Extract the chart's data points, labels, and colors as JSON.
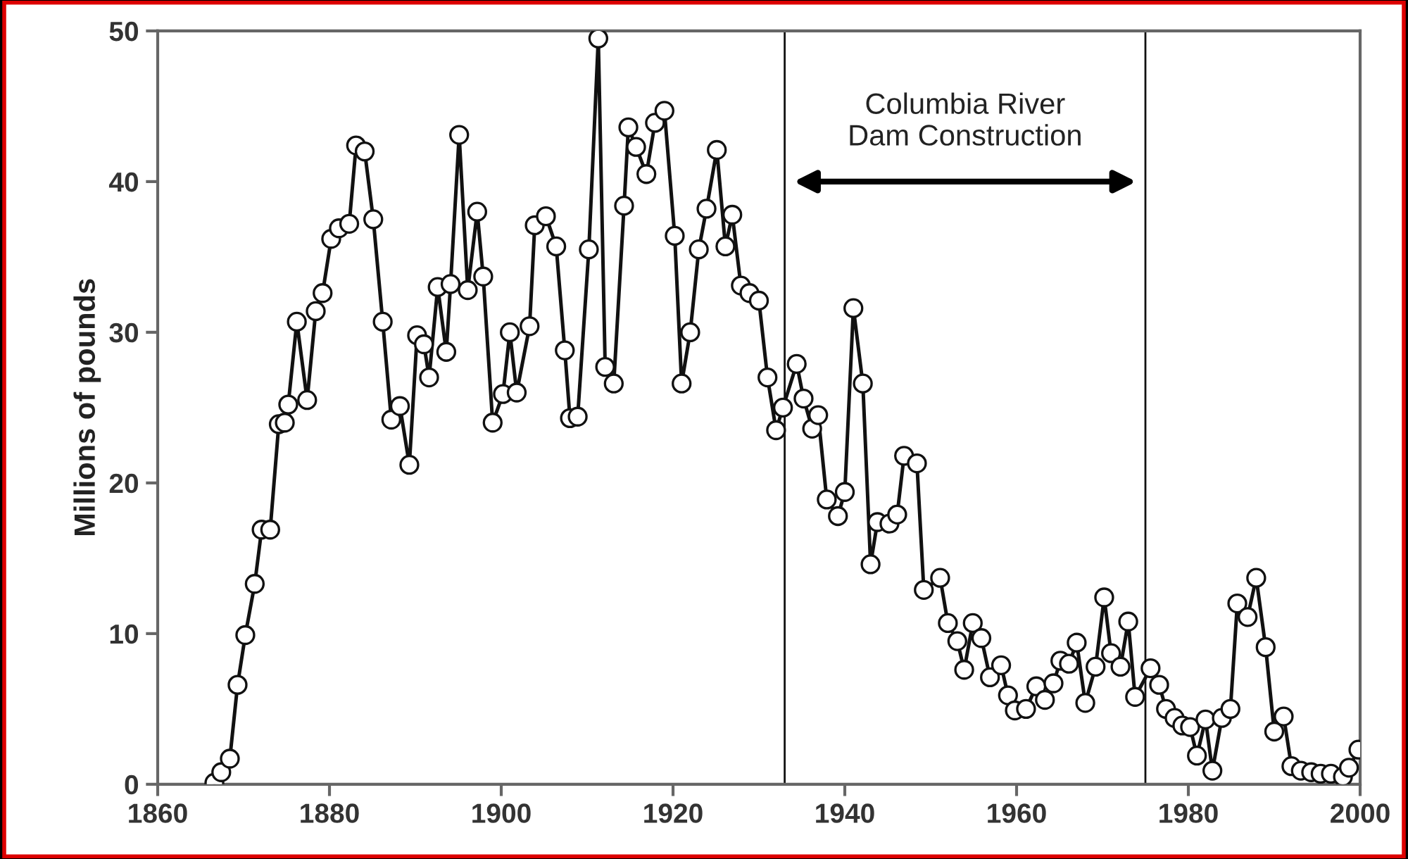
{
  "chart_data": {
    "type": "line",
    "ylabel": "Millions of pounds",
    "x": [
      1866.6,
      1867.4,
      1868.4,
      1869.3,
      1870.2,
      1871.3,
      1872.1,
      1873.1,
      1874.1,
      1874.8,
      1875.2,
      1876.2,
      1877.4,
      1878.4,
      1879.2,
      1880.2,
      1881.1,
      1882.3,
      1883.1,
      1884.1,
      1885.1,
      1886.2,
      1887.2,
      1888.2,
      1889.3,
      1890.2,
      1891.0,
      1891.6,
      1892.6,
      1893.6,
      1894.1,
      1895.1,
      1896.1,
      1897.2,
      1897.9,
      1899.0,
      1900.2,
      1901.0,
      1901.8,
      1903.3,
      1903.9,
      1905.2,
      1906.4,
      1907.4,
      1908.0,
      1908.9,
      1910.2,
      1911.3,
      1912.1,
      1913.1,
      1914.3,
      1914.8,
      1915.7,
      1916.9,
      1917.9,
      1919.0,
      1920.2,
      1921.0,
      1922.0,
      1923.0,
      1923.9,
      1925.1,
      1926.1,
      1926.9,
      1927.9,
      1928.9,
      1930.0,
      1931.0,
      1932.0,
      1932.8,
      1934.4,
      1935.2,
      1936.2,
      1936.9,
      1937.9,
      1939.2,
      1940.0,
      1941.0,
      1942.1,
      1943.0,
      1943.8,
      1945.2,
      1946.1,
      1946.9,
      1948.4,
      1949.2,
      1951.1,
      1952.0,
      1953.1,
      1953.9,
      1954.9,
      1955.9,
      1956.9,
      1958.2,
      1959.0,
      1959.8,
      1961.1,
      1962.3,
      1963.3,
      1964.3,
      1965.1,
      1966.1,
      1967.0,
      1968.0,
      1969.2,
      1970.2,
      1971.0,
      1972.1,
      1973.0,
      1973.8,
      1975.6,
      1976.6,
      1977.4,
      1978.4,
      1979.3,
      1980.2,
      1981.0,
      1982.0,
      1982.8,
      1983.9,
      1984.9,
      1985.7,
      1986.9,
      1987.9,
      1989.0,
      1990.0,
      1991.1,
      1992.0,
      1993.1,
      1994.3,
      1995.4,
      1996.6,
      1998.0,
      1998.7,
      1999.8
    ],
    "series": [
      {
        "color": "#111111",
        "values": [
          0.1,
          0.8,
          1.7,
          6.6,
          9.9,
          13.3,
          16.9,
          16.9,
          23.9,
          24.0,
          25.2,
          30.7,
          25.5,
          31.4,
          32.6,
          36.2,
          36.9,
          37.2,
          42.4,
          42.0,
          37.5,
          30.7,
          24.2,
          25.1,
          21.2,
          29.8,
          29.2,
          27.0,
          33.0,
          28.7,
          33.2,
          43.1,
          32.8,
          38.0,
          33.7,
          24.0,
          25.9,
          30.0,
          26.0,
          30.4,
          37.1,
          37.7,
          35.7,
          28.8,
          24.3,
          24.4,
          35.5,
          49.5,
          27.7,
          26.6,
          38.4,
          43.6,
          42.3,
          40.5,
          43.9,
          44.7,
          36.4,
          26.6,
          30.0,
          35.5,
          38.2,
          42.1,
          35.7,
          37.8,
          33.1,
          32.6,
          32.1,
          27.0,
          23.5,
          25.0,
          27.9,
          25.6,
          23.6,
          24.5,
          18.9,
          17.8,
          19.4,
          31.6,
          26.6,
          14.6,
          17.4,
          17.3,
          17.9,
          21.8,
          21.3,
          12.9,
          13.7,
          10.7,
          9.5,
          7.6,
          10.7,
          9.7,
          7.1,
          7.9,
          5.9,
          4.9,
          5.0,
          6.5,
          5.6,
          6.7,
          8.2,
          8.0,
          9.4,
          5.4,
          7.8,
          12.4,
          8.7,
          7.8,
          10.8,
          5.8,
          7.7,
          6.6,
          5.0,
          4.4,
          3.9,
          3.8,
          1.9,
          4.3,
          0.9,
          4.4,
          5.0,
          12.0,
          11.1,
          13.7,
          9.1,
          3.5,
          4.5,
          1.2,
          0.9,
          0.8,
          0.7,
          0.7,
          0.5,
          1.1,
          2.3
        ]
      }
    ],
    "marker": "circle",
    "line_style": "solid",
    "xlim": [
      1860,
      2000
    ],
    "xticks": [
      1860,
      1880,
      1900,
      1920,
      1940,
      1960,
      1980,
      2000
    ],
    "ylim": [
      0,
      50
    ],
    "yticks": [
      0,
      10,
      20,
      30,
      40,
      50
    ],
    "ref_lines": [
      {
        "axis": "x",
        "value": 1933,
        "color": "#111111"
      },
      {
        "axis": "x",
        "value": 1975,
        "color": "#111111"
      }
    ],
    "annotations": [
      "Columbia River\nDam Construction"
    ],
    "grid": false
  }
}
